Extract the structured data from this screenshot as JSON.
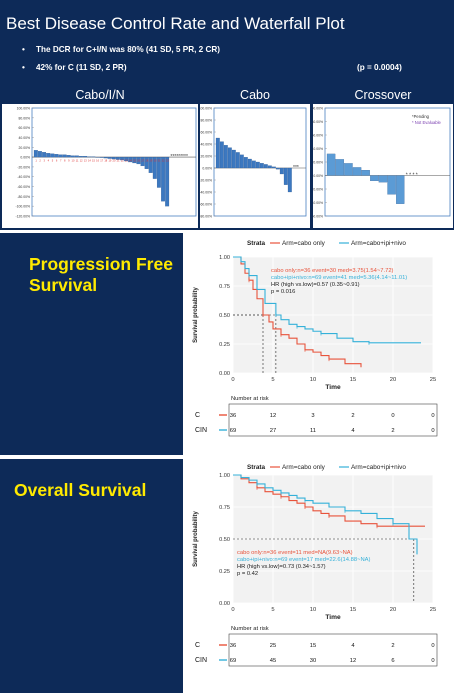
{
  "header": {
    "title": "Best Disease Control Rate and Waterfall Plot",
    "bullets": [
      "The DCR for C+I/N was 80% (41 SD, 5 PR, 2 CR)",
      "42% for C (11 SD, 2 PR)"
    ],
    "pvalue": "(p = 0.0004)"
  },
  "waterfalls": [
    {
      "title": "Cabo/I/N",
      "bar_color": "#3c78c0",
      "y_ticks": [
        "100.00%",
        "80.00%",
        "60.00%",
        "40.00%",
        "20.00%",
        "0.00%",
        "-20.00%",
        "-40.00%",
        "-60.00%",
        "-80.00%",
        "-100.00%",
        "-120.00%"
      ],
      "ylim": [
        -120,
        100
      ],
      "values": [
        14,
        12,
        10,
        8,
        7,
        6,
        5,
        5,
        4,
        3,
        3,
        2,
        2,
        1,
        1,
        0,
        -1,
        -2,
        -3,
        -4,
        -5,
        -6,
        -8,
        -10,
        -12,
        -14,
        -18,
        -24,
        -32,
        -44,
        -62,
        -90,
        -100
      ],
      "star_text": "*********"
    },
    {
      "title": "Cabo",
      "bar_color": "#3c78c0",
      "y_ticks": [
        "100.00%",
        "80.00%",
        "60.00%",
        "40.00%",
        "20.00%",
        "0.00%",
        "-20.00%",
        "-40.00%",
        "-60.00%",
        "-80.00%"
      ],
      "ylim": [
        -80,
        100
      ],
      "values": [
        50,
        44,
        38,
        34,
        30,
        26,
        22,
        18,
        15,
        12,
        10,
        8,
        6,
        4,
        2,
        -2,
        -10,
        -28,
        -40
      ],
      "star_text": "***"
    },
    {
      "title": "Crossover",
      "bar_color": "#5b9bd5",
      "y_ticks": [
        "100.00%",
        "80.00%",
        "60.00%",
        "40.00%",
        "20.00%",
        "0.00%",
        "-20.00%",
        "-40.00%",
        "-60.00%"
      ],
      "ylim": [
        -60,
        100
      ],
      "values": [
        32,
        24,
        18,
        12,
        8,
        -8,
        -10,
        -28,
        -42
      ],
      "star_text": "* * * *",
      "legend": [
        "*Pending",
        "* Not Evaluable"
      ]
    }
  ],
  "pfs": {
    "section_title_line1": "Progression Free",
    "section_title_line2": "Survival",
    "strata_label": "Strata",
    "legend": [
      "Arm=cabo only",
      "Arm=cabo+ipi+nivo"
    ],
    "annotations": [
      "cabo only:n=36 event=30 med=3.75(1.54~7.72)",
      "cabo+ipi+nivo:n=69 event=41 med=5.36(4.14~11.01)",
      "HR (high vs.low)=0.57 (0.35~0.91)",
      "p = 0.016"
    ],
    "ylabel": "Survival probability",
    "xlabel": "Time",
    "x_ticks": [
      "0",
      "5",
      "10",
      "15",
      "20",
      "25"
    ],
    "y_ticks": [
      "0.00",
      "0.25",
      "0.50",
      "0.75",
      "1.00"
    ],
    "risk_header": "Number at risk",
    "risk_rows": [
      {
        "label": "C",
        "values": [
          "36",
          "12",
          "3",
          "2",
          "0",
          "0"
        ]
      },
      {
        "label": "CIN",
        "values": [
          "69",
          "27",
          "11",
          "4",
          "2",
          "0"
        ]
      }
    ]
  },
  "os": {
    "section_title": "Overall Survival",
    "strata_label": "Strata",
    "legend": [
      "Arm=cabo only",
      "Arm=cabo+ipi+nivo"
    ],
    "annotations": [
      "cabo only:n=36 event=11 med=NA(9.63~NA)",
      "cabo+ipi+nivo:n=69 event=17 med=22.6(14.88~NA)",
      "HR (high vs.low)=0.73 (0.34~1.57)",
      "p = 0.42"
    ],
    "ylabel": "Survival probability",
    "xlabel": "Time",
    "x_ticks": [
      "0",
      "5",
      "10",
      "15",
      "20",
      "25"
    ],
    "y_ticks": [
      "0.00",
      "0.25",
      "0.50",
      "0.75",
      "1.00"
    ],
    "risk_header": "Number at risk",
    "risk_rows": [
      {
        "label": "C",
        "values": [
          "36",
          "25",
          "15",
          "4",
          "2",
          "0"
        ]
      },
      {
        "label": "CIN",
        "values": [
          "69",
          "45",
          "30",
          "12",
          "6",
          "0"
        ]
      }
    ]
  },
  "colors": {
    "navy": "#0d2a58",
    "yellow": "#ffea00",
    "red": "#e8533b",
    "blue": "#35b1d9"
  },
  "chart_data": [
    {
      "type": "bar",
      "title": "Cabo/I/N",
      "ylabel": "",
      "ylim": [
        -120,
        100
      ],
      "values": [
        14,
        12,
        10,
        8,
        7,
        6,
        5,
        5,
        4,
        3,
        3,
        2,
        2,
        1,
        1,
        0,
        -1,
        -2,
        -3,
        -4,
        -5,
        -6,
        -8,
        -10,
        -12,
        -14,
        -18,
        -24,
        -32,
        -44,
        -62,
        -90,
        -100
      ]
    },
    {
      "type": "bar",
      "title": "Cabo",
      "ylim": [
        -80,
        100
      ],
      "values": [
        50,
        44,
        38,
        34,
        30,
        26,
        22,
        18,
        15,
        12,
        10,
        8,
        6,
        4,
        2,
        -2,
        -10,
        -28,
        -40
      ]
    },
    {
      "type": "bar",
      "title": "Crossover",
      "ylim": [
        -60,
        100
      ],
      "values": [
        32,
        24,
        18,
        12,
        8,
        -8,
        -10,
        -28,
        -42
      ]
    },
    {
      "type": "line",
      "title": "",
      "xlabel": "Time",
      "ylabel": "Survival probability",
      "xlim": [
        0,
        25
      ],
      "ylim": [
        0,
        1
      ],
      "series": [
        {
          "name": "Arm=cabo only",
          "x": [
            0,
            1,
            1.5,
            2,
            2.5,
            3,
            3.75,
            4.5,
            5,
            6,
            7,
            8,
            9,
            10,
            11,
            12,
            14,
            16
          ],
          "y": [
            1,
            0.94,
            0.86,
            0.8,
            0.72,
            0.64,
            0.5,
            0.44,
            0.38,
            0.33,
            0.3,
            0.25,
            0.2,
            0.18,
            0.15,
            0.12,
            0.08,
            0.05
          ]
        },
        {
          "name": "Arm=cabo+ipi+nivo",
          "x": [
            0,
            1,
            1.5,
            2,
            3,
            4,
            5.36,
            6,
            7,
            8,
            9,
            10,
            11,
            13,
            15,
            17,
            19,
            23.5
          ],
          "y": [
            1,
            0.96,
            0.9,
            0.84,
            0.72,
            0.6,
            0.5,
            0.46,
            0.42,
            0.4,
            0.38,
            0.36,
            0.34,
            0.3,
            0.27,
            0.26,
            0.26,
            0.26
          ]
        }
      ]
    },
    {
      "type": "line",
      "title": "",
      "xlabel": "Time",
      "ylabel": "Survival probability",
      "xlim": [
        0,
        25
      ],
      "ylim": [
        0,
        1
      ],
      "series": [
        {
          "name": "Arm=cabo only",
          "x": [
            0,
            1,
            2,
            3,
            4,
            5,
            6,
            7,
            8,
            9,
            10,
            11,
            12,
            14,
            16,
            18,
            20,
            24
          ],
          "y": [
            1,
            0.97,
            0.94,
            0.9,
            0.87,
            0.85,
            0.83,
            0.8,
            0.78,
            0.75,
            0.72,
            0.7,
            0.68,
            0.64,
            0.62,
            0.6,
            0.6,
            0.6
          ]
        },
        {
          "name": "Arm=cabo+ipi+nivo",
          "x": [
            0,
            1,
            2,
            3,
            4,
            5,
            6,
            7,
            8,
            9,
            10,
            12,
            14,
            16,
            18,
            20,
            22,
            23
          ],
          "y": [
            1,
            0.98,
            0.96,
            0.93,
            0.9,
            0.88,
            0.86,
            0.84,
            0.82,
            0.8,
            0.78,
            0.75,
            0.72,
            0.7,
            0.66,
            0.62,
            0.5,
            0.38
          ]
        }
      ]
    }
  ]
}
